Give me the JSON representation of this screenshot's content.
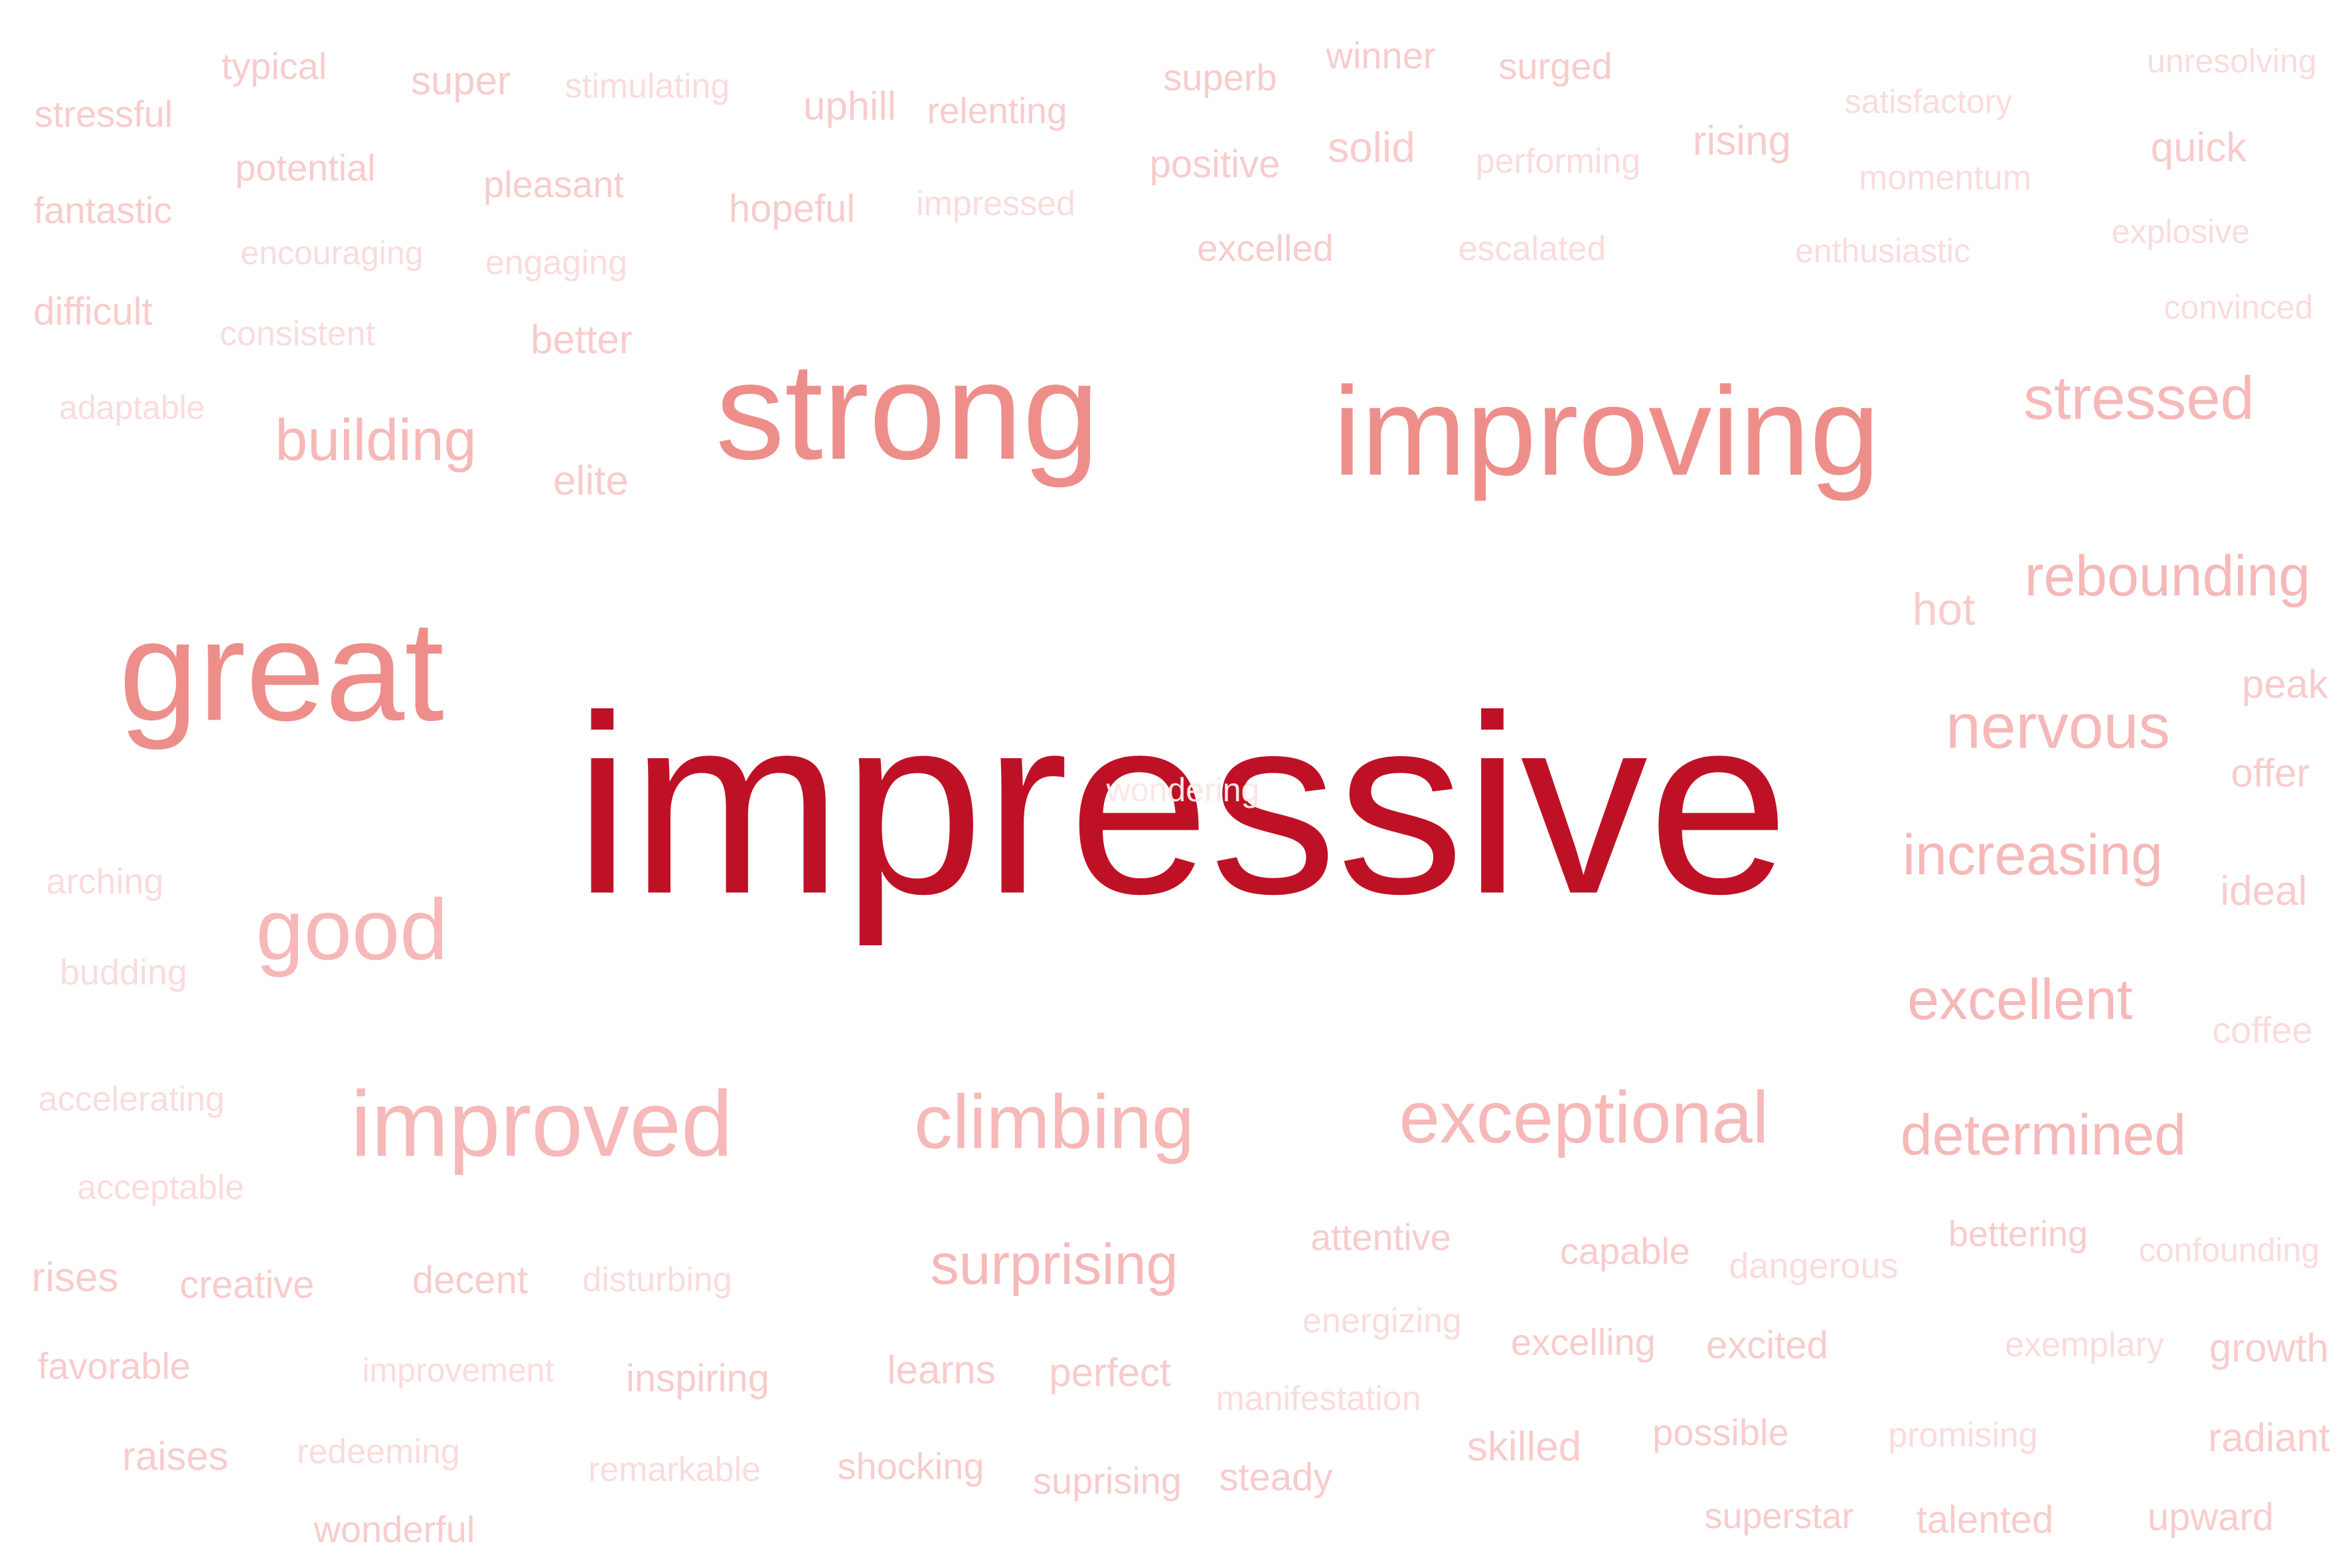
{
  "words": {
    "impressive": "impressive",
    "wonderfully": "wondering",
    "strong": "strong",
    "improving": "improving",
    "great": "great",
    "good": "good",
    "improved": "improved",
    "climbing": "climbing",
    "exceptional": "exceptional",
    "stressed": "stressed",
    "rebounding": "rebounding",
    "nervous": "nervous",
    "increasing": "increasing",
    "excellent": "excellent",
    "determined": "determined",
    "surprising": "surprising",
    "building": "building",
    "typical": "typical",
    "super": "super",
    "stimulating": "stimulating",
    "uphill": "uphill",
    "relenting": "relenting",
    "superb": "superb",
    "winner": "winner",
    "surged": "surged",
    "satisfactory": "satisfactory",
    "unresolving": "unresolving",
    "stressful": "stressful",
    "potential": "potential",
    "pleasant": "pleasant",
    "hopeful": "hopeful",
    "impressed": "impressed",
    "positive": "positive",
    "solid": "solid",
    "performing": "performing",
    "rising": "rising",
    "momentum": "momentum",
    "quick": "quick",
    "fantastic": "fantastic",
    "encouraging": "encouraging",
    "engaging": "engaging",
    "excelled": "excelled",
    "escalated": "escalated",
    "enthusiastic": "enthusiastic",
    "explosive": "explosive",
    "difficult": "difficult",
    "consistent": "consistent",
    "better": "better",
    "convinced": "convinced",
    "adaptable": "adaptable",
    "elite": "elite",
    "hot": "hot",
    "peak": "peak",
    "offer": "offer",
    "ideal": "ideal",
    "arching": "arching",
    "budding": "budding",
    "coffee": "coffee",
    "accelerating": "accelerating",
    "acceptable": "acceptable",
    "attentive": "attentive",
    "capable": "capable",
    "dangerous": "dangerous",
    "bettering": "bettering",
    "confounding": "confounding",
    "rises": "rises",
    "creative": "creative",
    "decent": "decent",
    "disturbing": "disturbing",
    "energizing": "energizing",
    "excelling": "excelling",
    "excited": "excited",
    "exemplary": "exemplary",
    "growth": "growth",
    "favorable": "favorable",
    "improvement": "improvement",
    "inspiring": "inspiring",
    "learns": "learns",
    "perfect": "perfect",
    "manifestation": "manifestation",
    "raises": "raises",
    "redeeming": "redeeming",
    "remarkable": "remarkable",
    "shocking": "shocking",
    "suprising": "suprising",
    "steady": "steady",
    "skilled": "skilled",
    "possible": "possible",
    "promising": "promising",
    "radiant": "radiant",
    "wonderful": "wonderful",
    "superstar": "superstar",
    "talented": "talented",
    "upward": "upward"
  },
  "colors": {
    "primary": "#bf1125",
    "strong": "#ee8e8a",
    "medium": "#f6b8b8",
    "light": "#f8cccc",
    "faint": "#fadcdc"
  }
}
